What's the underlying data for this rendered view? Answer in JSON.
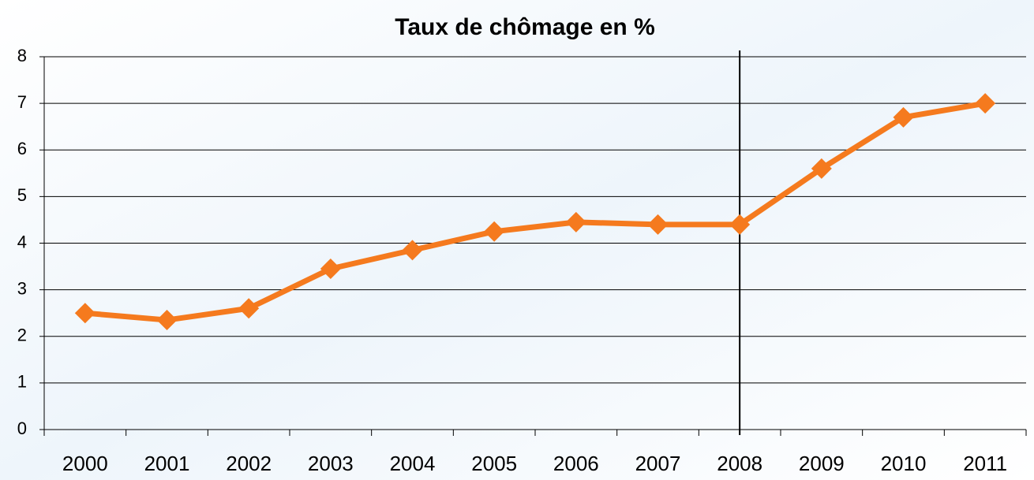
{
  "chart_data": {
    "type": "line",
    "title": "Taux de chômage en %",
    "categories": [
      "2000",
      "2001",
      "2002",
      "2003",
      "2004",
      "2005",
      "2006",
      "2007",
      "2008",
      "2009",
      "2010",
      "2011"
    ],
    "values": [
      2.5,
      2.35,
      2.6,
      3.45,
      3.85,
      4.25,
      4.45,
      4.4,
      4.4,
      5.6,
      6.7,
      7.0
    ],
    "color": "#f57a1e",
    "ylim": [
      0,
      8
    ],
    "yticks": [
      0,
      1,
      2,
      3,
      4,
      5,
      6,
      7,
      8
    ],
    "grid": true,
    "vertical_line_at": "2008"
  }
}
